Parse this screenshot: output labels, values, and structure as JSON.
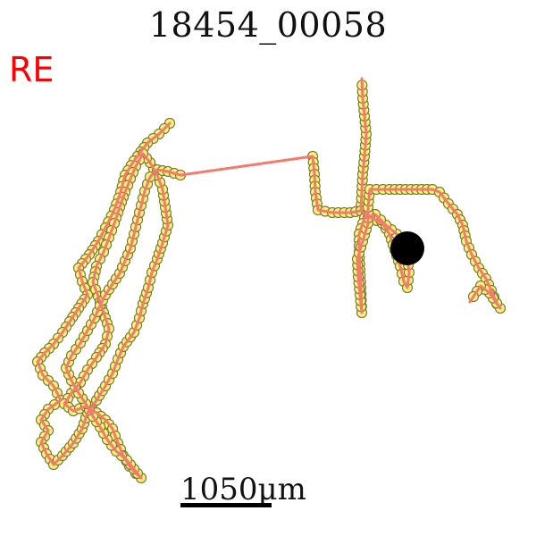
{
  "title": "18454_00058",
  "eye_label": "RE",
  "scale_bar": {
    "label": "1050μm"
  },
  "colors": {
    "path": "#f47a6c",
    "marker_fill": "#fff27a",
    "marker_edge": "#7a7a3a",
    "eye_label": "#ff0000",
    "start_dot": "#000000"
  }
}
